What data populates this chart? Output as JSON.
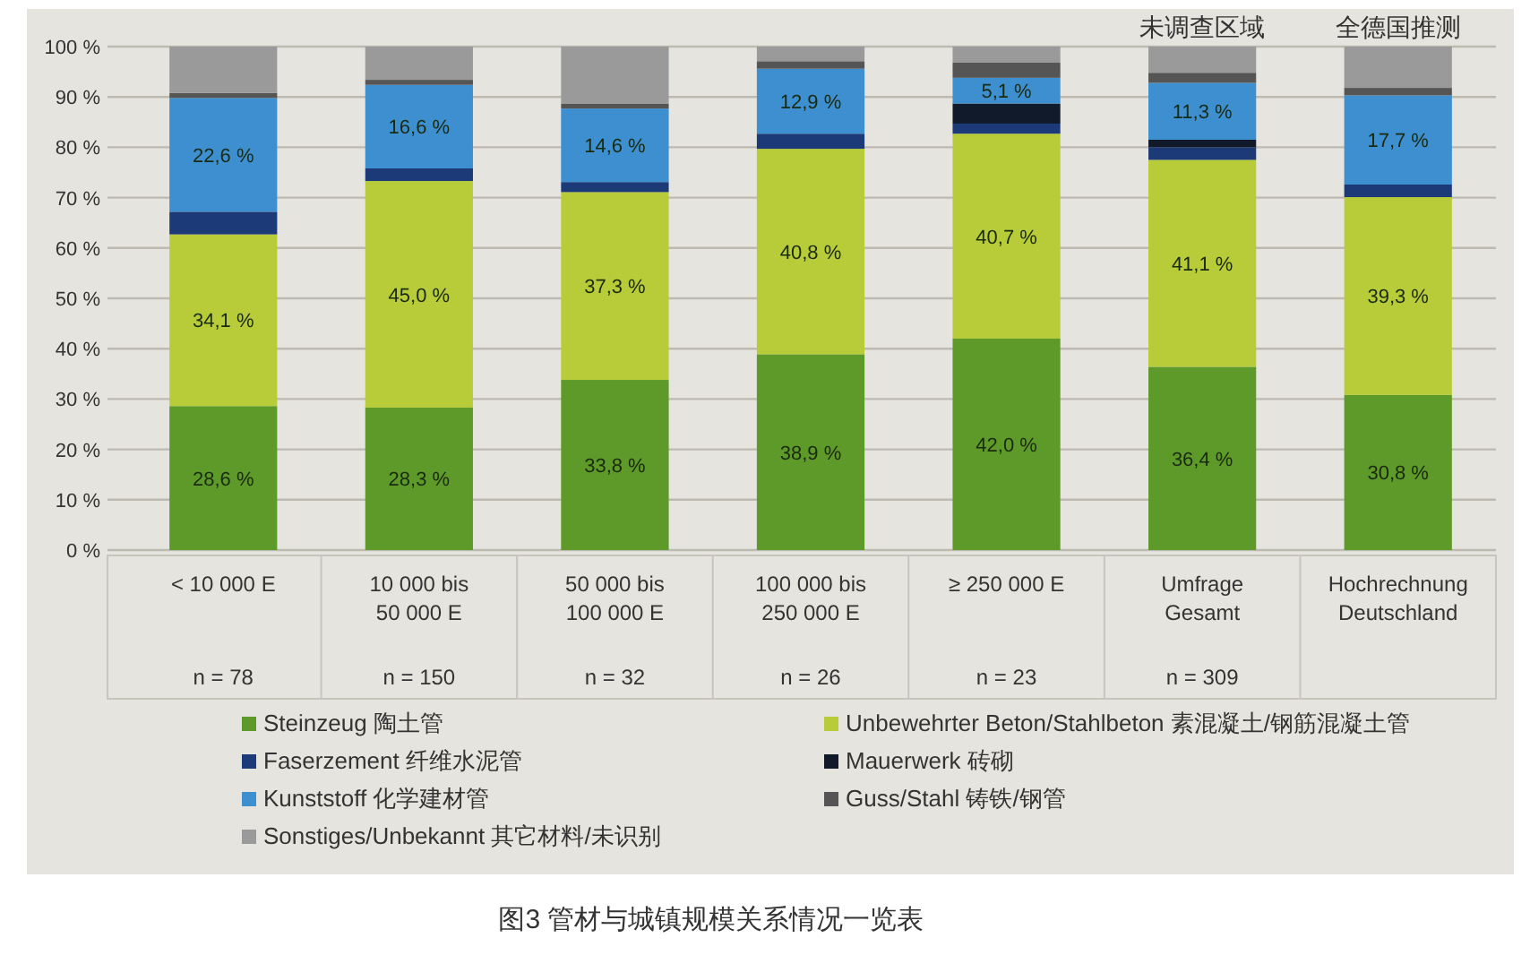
{
  "chart_data": {
    "type": "bar",
    "stacked": true,
    "categories": [
      "< 10 000 E\n\nn = 78",
      "10 000 bis\n50 000 E\nn = 150",
      "50 000 bis\n100 000 E\nn = 32",
      "100 000 bis\n250 000 E\nn = 26",
      "≥ 250 000 E\n\nn = 23",
      "Umfrage\nGesamt\nn = 309",
      "Hochrechnung\nDeutschland"
    ],
    "series": [
      {
        "name": "Steinzeug  陶土管",
        "color": "#5e9a2a",
        "values": [
          28.6,
          28.3,
          33.8,
          38.9,
          42.0,
          36.4,
          30.8
        ],
        "value_labels": [
          "28,6 %",
          "28,3 %",
          "33,8 %",
          "38,9 %",
          "42,0 %",
          "36,4 %",
          "30,8 %"
        ]
      },
      {
        "name": "Unbewehrter Beton/Stahlbeton  素混凝土/钢筋混凝土管",
        "color": "#b8cc3a",
        "values": [
          34.1,
          45.0,
          37.3,
          40.8,
          40.7,
          41.1,
          39.3
        ],
        "value_labels": [
          "34,1 %",
          "45,0 %",
          "37,3 %",
          "40,8 %",
          "40,7 %",
          "41,1 %",
          "39,3 %"
        ]
      },
      {
        "name": "Faserzement  纤维水泥管",
        "color": "#1c3a78",
        "values": [
          4.5,
          2.5,
          2.0,
          3.0,
          2.0,
          2.5,
          2.5
        ]
      },
      {
        "name": "Mauerwerk  砖砌",
        "color": "#111a2a",
        "values": [
          0,
          0,
          0,
          0,
          4.0,
          1.5,
          0
        ]
      },
      {
        "name": "Kunststoff  化学建材管",
        "color": "#3d8fd0",
        "values": [
          22.6,
          16.6,
          14.6,
          12.9,
          5.1,
          11.3,
          17.7
        ],
        "value_labels": [
          "22,6 %",
          "16,6 %",
          "14,6 %",
          "12,9 %",
          "5,1 %",
          "11,3 %",
          "17,7 %"
        ]
      },
      {
        "name": "Guss/Stahl  铸铁/钢管",
        "color": "#555555",
        "values": [
          1.0,
          1.0,
          1.0,
          1.5,
          3.0,
          2.0,
          1.5
        ]
      },
      {
        "name": "Sonstiges/Unbekannt  其它材料/未识别",
        "color": "#9a9a9a",
        "values": [
          9.2,
          6.6,
          11.3,
          2.9,
          3.2,
          5.2,
          8.2
        ]
      }
    ],
    "ylim": [
      0,
      100
    ],
    "yticks": [
      {
        "value": 0,
        "label": "0 %"
      },
      {
        "value": 10,
        "label": "10 %"
      },
      {
        "value": 20,
        "label": "20 %"
      },
      {
        "value": 30,
        "label": "30 %"
      },
      {
        "value": 40,
        "label": "40 %"
      },
      {
        "value": 50,
        "label": "50 %"
      },
      {
        "value": 60,
        "label": "60 %"
      },
      {
        "value": 70,
        "label": "70 %"
      },
      {
        "value": 80,
        "label": "80 %"
      },
      {
        "value": 90,
        "label": "90 %"
      },
      {
        "value": 100,
        "label": "100 %"
      }
    ],
    "grid": "y",
    "legend": "bottom",
    "annotations": [
      {
        "text": "未调查区域",
        "x": "Umfrage\nGesamt\nn = 309",
        "y": 100
      },
      {
        "text": "全德国推测",
        "x": "Hochrechnung\nDeutschland",
        "y": 100
      },
      "图3   管材与城镇规模关系情况一览表"
    ]
  }
}
